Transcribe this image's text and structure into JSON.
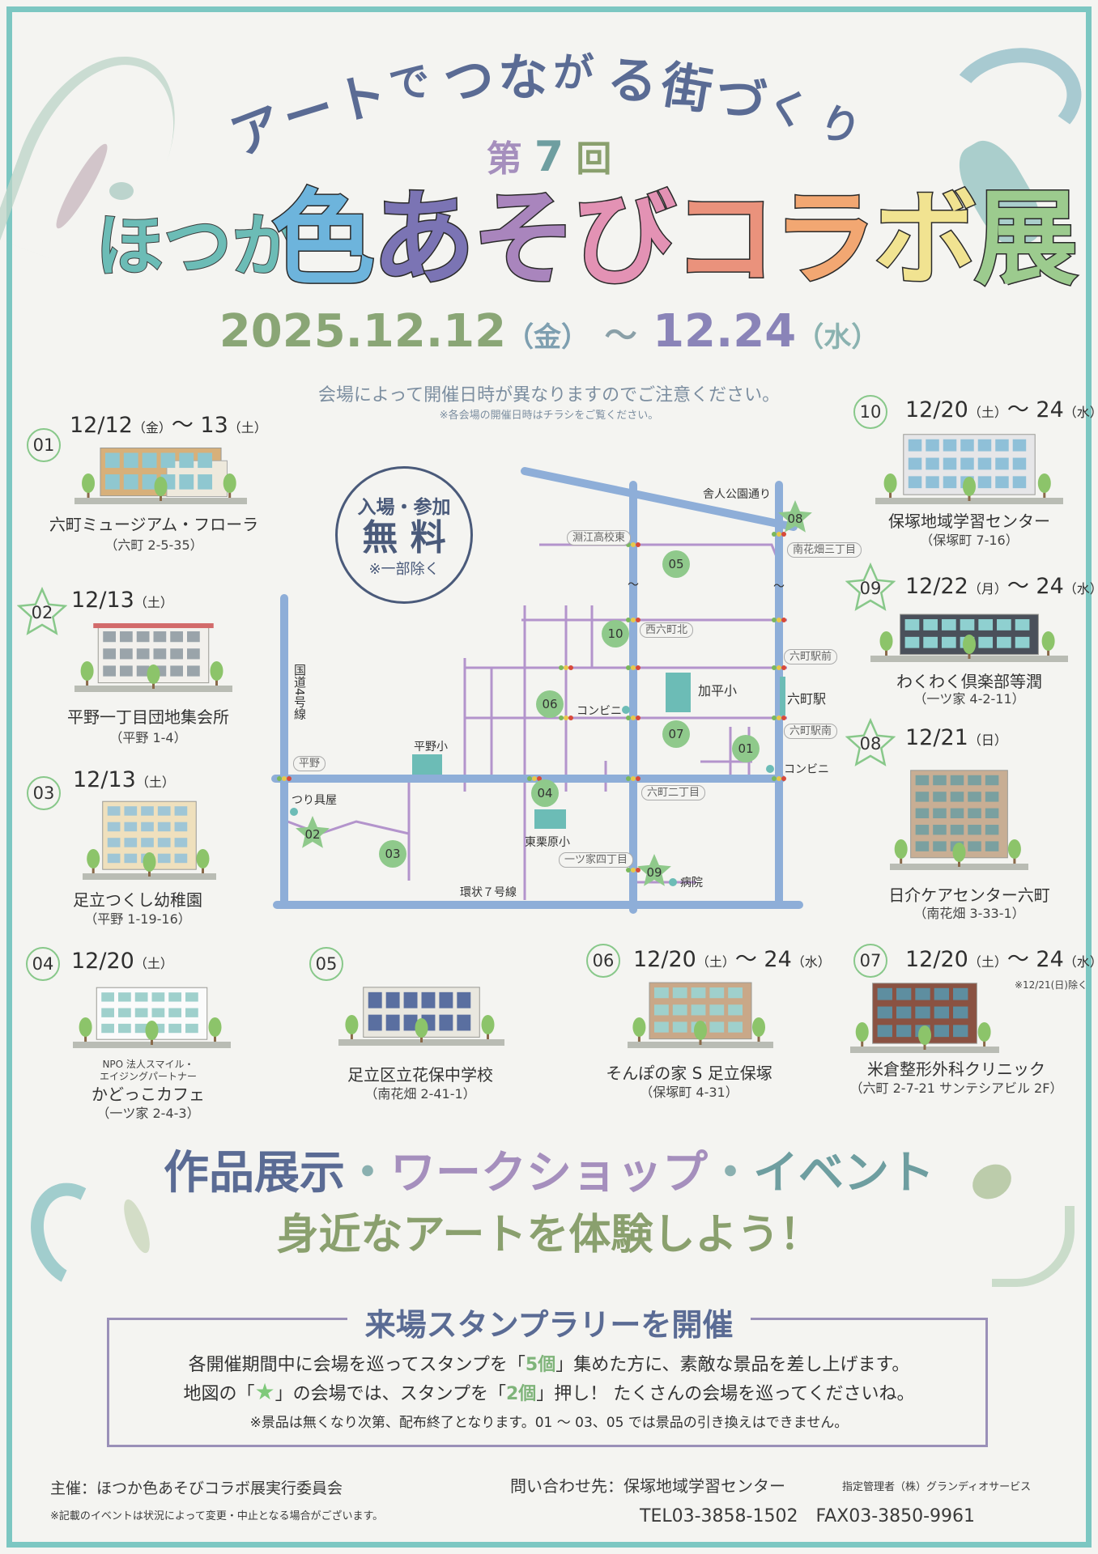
{
  "header": {
    "tagline": "アートでつながる街づくり",
    "edition_prefix": "第",
    "edition_number": "7",
    "edition_suffix": "回",
    "title_prefix": "ほつか",
    "title_chars": [
      "色",
      "あ",
      "そ",
      "び",
      "コ",
      "ラ",
      "ボ",
      "展"
    ],
    "title_colors": [
      "#6db4dc",
      "#7b74b4",
      "#a985bd",
      "#e392b4",
      "#ea927c",
      "#f2a772",
      "#f1e391",
      "#9ccb8e"
    ],
    "period": {
      "start": "2025.12.12",
      "start_day": "（金）",
      "sep": "～",
      "end": "12.24",
      "end_day": "（水）"
    },
    "notice": "会場によって開催日時が異なりますのでご注意ください。",
    "notice_sub": "※各会場の開催日時はチラシをご覧ください。"
  },
  "venues": [
    {
      "number": "01",
      "star": false,
      "date": [
        "12/12",
        "（金）",
        "～ 13",
        "（土）"
      ],
      "name": "六町ミュージアム・フローラ",
      "address": "（六町 2-5-35）"
    },
    {
      "number": "02",
      "star": true,
      "date": [
        "12/13",
        "（土）"
      ],
      "name": "平野一丁目団地集会所",
      "address": "（平野 1-4）"
    },
    {
      "number": "03",
      "star": false,
      "date": [
        "12/13",
        "（土）"
      ],
      "name": "足立つくし幼稚園",
      "address": "（平野 1-19-16）"
    },
    {
      "number": "04",
      "star": false,
      "date": [
        "12/20",
        "（土）"
      ],
      "org_lines": [
        "NPO 法人スマイル・",
        "エイジングパートナー"
      ],
      "name": "かどっこカフェ",
      "address": "（一ツ家 2-4-3）"
    },
    {
      "number": "05",
      "star": false,
      "date": [],
      "name": "足立区立花保中学校",
      "address": "（南花畑 2-41-1）"
    },
    {
      "number": "06",
      "star": false,
      "date": [
        "12/20",
        "（土）",
        "～ 24",
        "（水）"
      ],
      "name": "そんぽの家 S 足立保塚",
      "address": "（保塚町 4-31）"
    },
    {
      "number": "07",
      "star": false,
      "date": [
        "12/20",
        "（土）",
        "～ 24",
        "（水）"
      ],
      "note": "※12/21(日)除く",
      "name": "米倉整形外科クリニック",
      "address": "（六町 2-7-21 サンテシアビル 2F）"
    },
    {
      "number": "10",
      "star": false,
      "date": [
        "12/20",
        "（土）",
        "～ 24",
        "（水）"
      ],
      "name": "保塚地域学習センター",
      "address": "（保塚町 7-16）"
    },
    {
      "number": "09",
      "star": true,
      "date": [
        "12/22",
        "（月）",
        "～ 24",
        "（水）"
      ],
      "name": "わくわく倶楽部等潤",
      "address": "（一ツ家 4-2-11）"
    },
    {
      "number": "08",
      "star": true,
      "date": [
        "12/21",
        "（日）"
      ],
      "name": "日介ケアセンター六町",
      "address": "（南花畑 3-33-1）"
    }
  ],
  "map": {
    "bubble": {
      "line1": "入場・参加",
      "line2": "無 料",
      "line3": "※一部除く"
    },
    "road_labels": [
      "舎人公園通り",
      "国道4号線",
      "環状７号線"
    ],
    "intersections": [
      "淵江高校東",
      "南花畑三丁目",
      "西六町北",
      "六町駅前",
      "六町駅南",
      "平野",
      "六町二丁目",
      "一ツ家四丁目"
    ],
    "landmarks": [
      "平野小",
      "加平小",
      "東栗原小",
      "六町駅",
      "コンビニ",
      "コンビニ",
      "つり具屋",
      "病院"
    ],
    "pins": [
      "05",
      "10",
      "06",
      "07",
      "01",
      "04",
      "03"
    ],
    "star_pins": [
      "08",
      "02",
      "09"
    ],
    "tilde": "～",
    "colors": {
      "main_road": "#8eaed8",
      "minor_road": "#b394cc",
      "pin": "#8fc98b",
      "landmark": "#6cbcb6"
    }
  },
  "slogan": {
    "part1": "作品展示",
    "sep": "・",
    "part2": "ワークショップ",
    "part3": "イベント",
    "line2": "身近なアートを体験しよう！"
  },
  "stamp_rally": {
    "title": "来場スタンプラリーを開催",
    "line1_a": "各開催期間中に会場を巡ってスタンプを「",
    "line1_hl": "5個",
    "line1_b": "」集めた方に、素敵な景品を差し上げます。",
    "line2_a": "地図の「",
    "line2_star": "★",
    "line2_b": "」の会場では、スタンプを「",
    "line2_hl": "2個",
    "line2_c": "」押し！ たくさんの会場を巡ってくださいね。",
    "note": "※景品は無くなり次第、配布終了となります。01 ～ 03、05 では景品の引き換えはできません。"
  },
  "footer": {
    "organizer": "主催：ほつか色あそびコラボ展実行委員会",
    "disclaimer": "※記載のイベントは状況によって変更・中止となる場合がございます。",
    "contact": "問い合わせ先：保塚地域学習センター",
    "manager": "指定管理者（株）グランディオサービス",
    "phone": "TEL03-3858-1502　FAX03-3850-9961"
  },
  "colors": {
    "frame": "#7cc7c2",
    "navy": "#5a6b94",
    "purple": "#a58fbd",
    "teal": "#6e9ea0",
    "green": "#8aa06e",
    "badge": "#88c88a"
  }
}
